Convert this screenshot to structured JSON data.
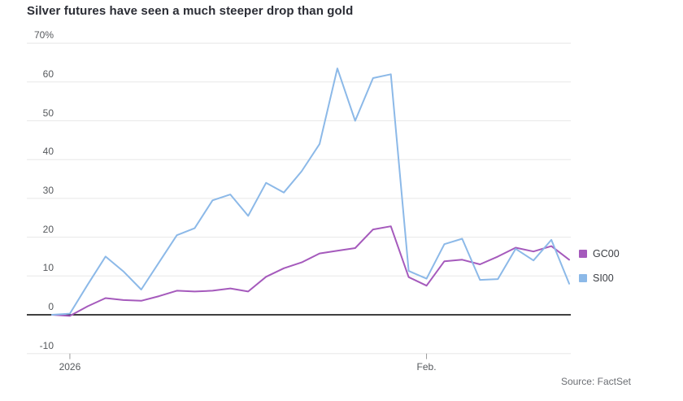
{
  "chart_data": {
    "type": "line",
    "title": "Silver futures have seen a much steeper drop than gold",
    "source": "Source: FactSet",
    "y_axis": {
      "range": [
        -10,
        70
      ],
      "ticks": [
        {
          "label": "70%",
          "value": 70
        },
        {
          "label": "60",
          "value": 60
        },
        {
          "label": "50",
          "value": 50
        },
        {
          "label": "40",
          "value": 40
        },
        {
          "label": "30",
          "value": 30
        },
        {
          "label": "20",
          "value": 20
        },
        {
          "label": "10",
          "value": 10
        },
        {
          "label": "0",
          "value": 0
        },
        {
          "label": "-10",
          "value": -10
        }
      ]
    },
    "x_axis": {
      "ticks": [
        {
          "label": "2026",
          "index": 1
        },
        {
          "label": "Feb.",
          "index": 21
        }
      ]
    },
    "legend": {
      "position": "right",
      "entries": [
        "GC00",
        "SI00"
      ]
    },
    "series": [
      {
        "name": "GC00",
        "color": "#a55abc",
        "values": [
          0,
          -0.3,
          2.2,
          4.3,
          3.8,
          3.6,
          4.8,
          6.2,
          6.0,
          6.2,
          6.8,
          6.0,
          9.8,
          12.0,
          13.5,
          15.8,
          16.5,
          17.2,
          22.0,
          22.8,
          9.7,
          7.5,
          13.8,
          14.2,
          13.0,
          15.0,
          17.3,
          16.3,
          17.7,
          14.2
        ]
      },
      {
        "name": "SI00",
        "color": "#8cb9e8",
        "values": [
          0,
          0.3,
          7.8,
          15.0,
          11.2,
          6.5,
          13.5,
          20.5,
          22.3,
          29.5,
          31.0,
          25.5,
          34.0,
          31.5,
          37.0,
          44.0,
          63.5,
          50.0,
          61.0,
          62.0,
          11.3,
          9.3,
          18.2,
          19.6,
          9.0,
          9.2,
          17.0,
          14.0,
          19.3,
          8.0
        ]
      }
    ],
    "grid": "horizontal",
    "colors": {
      "background": "#ffffff",
      "grid": "#e8e8e8",
      "zero_line": "#000000",
      "tick_mark": "#9a9a9a",
      "axis_text": "#55585c",
      "title_text": "#2b2d35",
      "legend_text": "#3b3e44",
      "source_text": "#6b6e73"
    }
  }
}
